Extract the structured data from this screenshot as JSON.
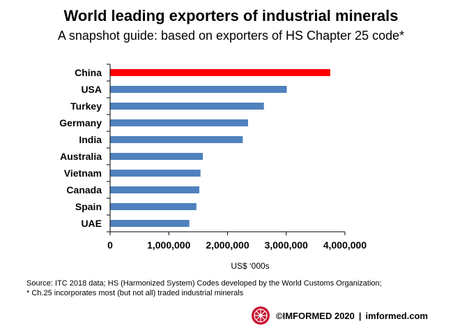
{
  "title": "World leading exporters of industrial minerals",
  "subtitle": "A snapshot guide: based on exporters of HS Chapter 25 code*",
  "chart_data": {
    "type": "bar",
    "orientation": "horizontal",
    "categories": [
      "China",
      "USA",
      "Turkey",
      "Germany",
      "India",
      "Australia",
      "Vietnam",
      "Canada",
      "Spain",
      "UAE"
    ],
    "values": [
      3750000,
      3010000,
      2620000,
      2350000,
      2260000,
      1580000,
      1540000,
      1520000,
      1470000,
      1350000
    ],
    "xlim": [
      0,
      4000000
    ],
    "xticks": [
      0,
      1000000,
      2000000,
      3000000,
      4000000
    ],
    "xtick_labels": [
      "0",
      "1,000,000",
      "2,000,000",
      "3,000,000",
      "4,000,000"
    ],
    "xlabel": "US$ ‘000s",
    "ylabel": "",
    "grid": false,
    "colors": {
      "highlight": "#FF0000",
      "default": "#4F81BD"
    },
    "highlight_category": "China"
  },
  "source_line1": "Source: ITC 2018 data; HS (Harmonized System) Codes developed by the World Customs Organization;",
  "source_line2": "* Ch.25 incorporates most (but not all) traded industrial minerals",
  "footer": {
    "copyright": "©IMFORMED 2020",
    "separator": "|",
    "website": "imformed.com",
    "logo_icon": "imformed-globe-logo"
  }
}
